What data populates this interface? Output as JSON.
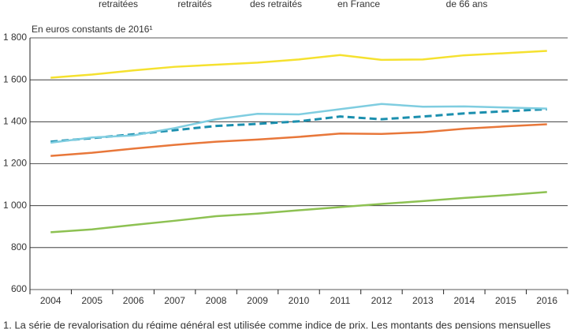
{
  "chart_data": {
    "type": "line",
    "legend_labels": [
      "retraitées",
      "retraités",
      "des retraités",
      "en France",
      "de 66 ans"
    ],
    "y_label": "En euros constants de 2016¹",
    "footnote": "1. La série de revalorisation du régime général est utilisée comme indice de prix. Les montants des pensions mensuelles",
    "categories": [
      "2004",
      "2005",
      "2006",
      "2007",
      "2008",
      "2009",
      "2010",
      "2011",
      "2012",
      "2013",
      "2014",
      "2015",
      "2016"
    ],
    "series": [
      {
        "name": "retraitées",
        "color": "#8dc152",
        "dashed": false,
        "values": [
          873,
          887,
          908,
          928,
          950,
          962,
          978,
          993,
          1008,
          1022,
          1037,
          1050,
          1065
        ]
      },
      {
        "name": "retraités",
        "color": "#f5e12f",
        "dashed": false,
        "values": [
          1610,
          1625,
          1645,
          1662,
          1672,
          1682,
          1697,
          1718,
          1695,
          1697,
          1717,
          1727,
          1738
        ]
      },
      {
        "name": "des retraités",
        "color": "#e8773a",
        "dashed": false,
        "values": [
          1237,
          1252,
          1272,
          1290,
          1305,
          1315,
          1328,
          1344,
          1342,
          1350,
          1367,
          1378,
          1388
        ]
      },
      {
        "name": "en France",
        "color": "#1b8fae",
        "dashed": true,
        "values": [
          1305,
          1322,
          1340,
          1360,
          1380,
          1390,
          1402,
          1425,
          1412,
          1425,
          1440,
          1450,
          1460
        ]
      },
      {
        "name": "de 66 ans",
        "color": "#7fcde0",
        "dashed": false,
        "values": [
          1300,
          1325,
          1335,
          1370,
          1412,
          1438,
          1435,
          1460,
          1485,
          1472,
          1473,
          1468,
          1463
        ]
      }
    ],
    "ylim": [
      600,
      1800
    ],
    "yticks": [
      600,
      800,
      {
        "value": 1000,
        "label": "1 000"
      },
      {
        "value": 1200,
        "label": "1 200"
      },
      {
        "value": 1400,
        "label": "1 400"
      },
      {
        "value": 1600,
        "label": "1 600"
      },
      {
        "value": 1800,
        "label": "1 800"
      }
    ],
    "grid": true
  }
}
